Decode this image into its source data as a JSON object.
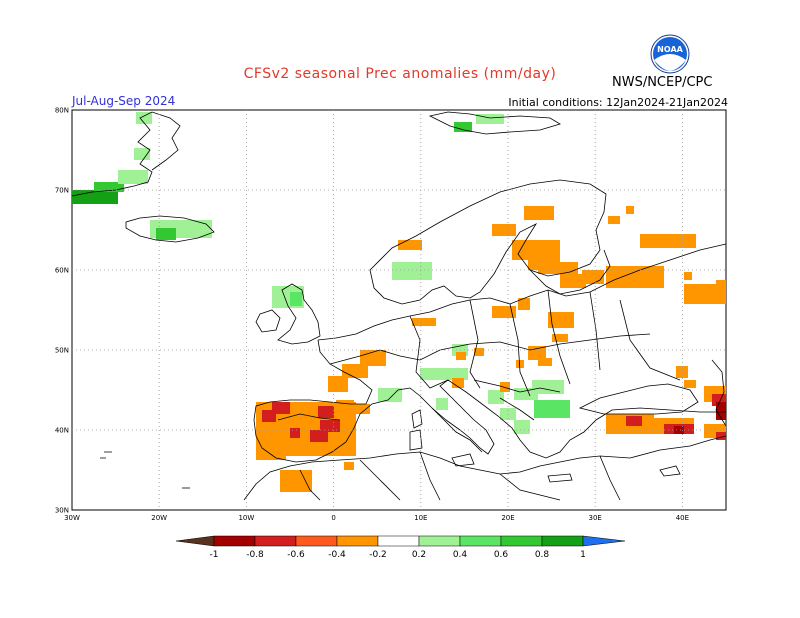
{
  "title": "CFSv2 seasonal Prec anomalies (mm/day)",
  "period": "Jul-Aug-Sep 2024",
  "initial_conditions": "Initial conditions: 12Jan2024-21Jan2024",
  "org": "NWS/NCEP/CPC",
  "logo_text": "NOAA",
  "lat_labels": [
    "80N",
    "70N",
    "60N",
    "50N",
    "40N",
    "30N"
  ],
  "lon_labels": [
    "30W",
    "20W",
    "10W",
    "0",
    "10E",
    "20E",
    "30E",
    "40E"
  ],
  "colorbar": {
    "tick_labels": [
      "-1",
      "-0.8",
      "-0.6",
      "-0.4",
      "-0.2",
      "0.2",
      "0.4",
      "0.6",
      "0.8",
      "1"
    ],
    "colors": [
      "#5a3020",
      "#a50000",
      "#d21e1e",
      "#ff5a1e",
      "#ff9600",
      "#ffffff",
      "#a0f096",
      "#5ae664",
      "#32c832",
      "#14a014",
      "#1e6ef0"
    ]
  }
}
